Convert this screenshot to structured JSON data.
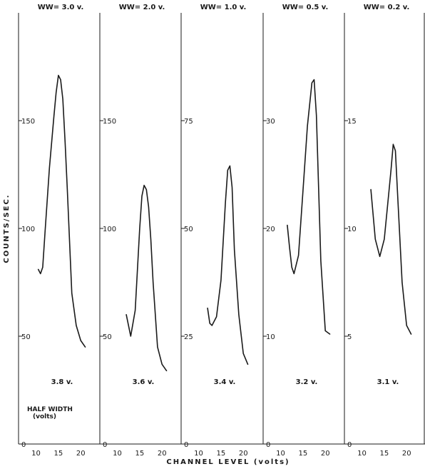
{
  "chart_data": {
    "type": "line",
    "ylabel": "COUNTS/SEC.",
    "xlabel": "CHANNEL LEVEL (volts)",
    "annotation": {
      "line1": "HALF WIDTH",
      "line2": "(volts)"
    },
    "xlim": [
      8,
      23
    ],
    "xticks": [
      "10",
      "15",
      "20"
    ],
    "line_color": "#1a1a1a",
    "panels": [
      {
        "title": "WW= 3.0 v.",
        "half_width": "3.8 v.",
        "ylim": [
          0,
          200
        ],
        "yticks": [
          {
            "value": 0,
            "label": "0"
          },
          {
            "value": 50,
            "label": "50"
          },
          {
            "value": 100,
            "label": "100"
          },
          {
            "value": 150,
            "label": "150"
          }
        ],
        "series": {
          "x": [
            10.5,
            11,
            11.5,
            12,
            13,
            14,
            14.5,
            15,
            15.5,
            16,
            16.5,
            17,
            18,
            19,
            20,
            21
          ],
          "y": [
            81,
            79,
            82,
            98,
            128,
            152,
            163,
            171,
            169,
            160,
            140,
            118,
            70,
            55,
            48,
            45
          ]
        }
      },
      {
        "title": "WW= 2.0 v.",
        "half_width": "3.6 v.",
        "ylim": [
          0,
          200
        ],
        "yticks": [
          {
            "value": 0,
            "label": "0"
          },
          {
            "value": 50,
            "label": "50"
          },
          {
            "value": 100,
            "label": "100"
          },
          {
            "value": 150,
            "label": "150"
          }
        ],
        "series": {
          "x": [
            12,
            13,
            14,
            15,
            15.5,
            16,
            16.5,
            17,
            17.5,
            18,
            19,
            20,
            21
          ],
          "y": [
            60,
            50,
            62,
            100,
            115,
            120,
            118,
            110,
            95,
            75,
            45,
            37,
            34
          ]
        }
      },
      {
        "title": "WW= 1.0 v.",
        "half_width": "3.4 v.",
        "ylim": [
          0,
          100
        ],
        "yticks": [
          {
            "value": 0,
            "label": "0"
          },
          {
            "value": 25,
            "label": "25"
          },
          {
            "value": 50,
            "label": "50"
          },
          {
            "value": 75,
            "label": "75"
          }
        ],
        "series": {
          "x": [
            12,
            12.5,
            13,
            14,
            15,
            16,
            16.5,
            17,
            17.5,
            18,
            19,
            20,
            21
          ],
          "y": [
            31.5,
            28,
            27.5,
            29.5,
            38,
            56,
            63.5,
            64.5,
            59.5,
            45,
            30,
            21,
            18.5
          ]
        }
      },
      {
        "title": "WW= 0.5 v.",
        "half_width": "3.2 v.",
        "ylim": [
          0,
          40
        ],
        "yticks": [
          {
            "value": 0,
            "label": "0"
          },
          {
            "value": 10,
            "label": "10"
          },
          {
            "value": 20,
            "label": "20"
          },
          {
            "value": 30,
            "label": "30"
          }
        ],
        "series": {
          "x": [
            11.5,
            12,
            12.5,
            13,
            14,
            15,
            16,
            17,
            17.5,
            18,
            19,
            20,
            21
          ],
          "y": [
            20.3,
            18.2,
            16.4,
            15.8,
            17.5,
            23.5,
            29.5,
            33.5,
            33.8,
            30.5,
            17,
            10.5,
            10.2
          ]
        }
      },
      {
        "title": "WW= 0.2 v.",
        "half_width": "3.1 v.",
        "ylim": [
          0,
          20
        ],
        "yticks": [
          {
            "value": 0,
            "label": "0"
          },
          {
            "value": 5,
            "label": "5"
          },
          {
            "value": 10,
            "label": "10"
          },
          {
            "value": 15,
            "label": "15"
          }
        ],
        "series": {
          "x": [
            12,
            13,
            14,
            15,
            16,
            16.5,
            17,
            17.5,
            18,
            19,
            20,
            21
          ],
          "y": [
            11.8,
            9.5,
            8.7,
            9.5,
            11.6,
            12.7,
            13.9,
            13.6,
            11.5,
            7.5,
            5.5,
            5.1
          ]
        }
      }
    ]
  }
}
